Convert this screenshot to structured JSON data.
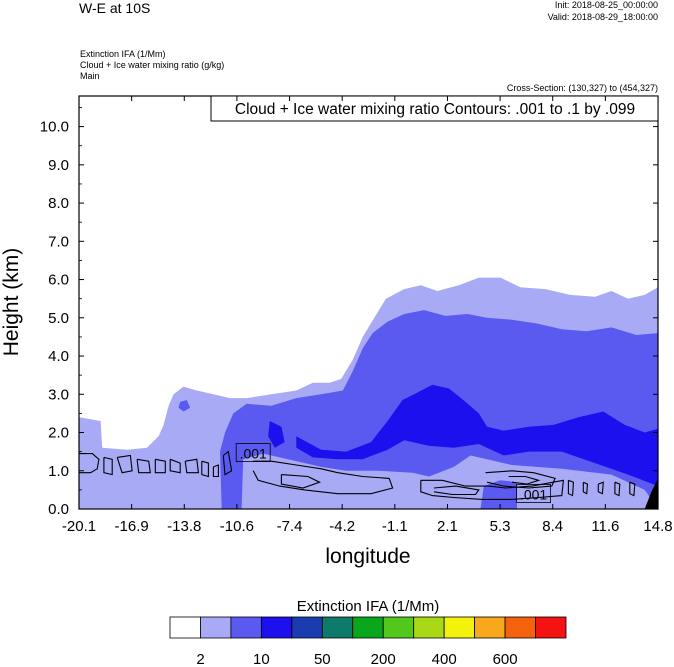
{
  "header": {
    "title": "W-E at 10S",
    "init": "Init: 2018-08-25_00:00:00",
    "valid": "Valid: 2018-08-29_18:00:00",
    "field1": "Extinction IFA   (1/Mm)",
    "field2": "Cloud + Ice water mixing ratio   (g/kg)",
    "field3": "Main",
    "cross_section": "Cross-Section: (130,327) to (454,327)"
  },
  "chart_data": {
    "type": "contour",
    "title": "W-E at 10S",
    "contour_box_label": "Cloud + Ice water mixing ratio Contours: .001 to .1 by .099",
    "xlabel": "longitude",
    "ylabel": "Height (km)",
    "xlim": [
      -20.1,
      14.8
    ],
    "ylim": [
      0.0,
      10.8
    ],
    "xticks": [
      "-20.1",
      "-16.9",
      "-13.8",
      "-10.6",
      "-7.4",
      "-4.2",
      "-1.1",
      "2.1",
      "5.3",
      "8.4",
      "11.6",
      "14.8"
    ],
    "yticks": [
      "0.0",
      "1.0",
      "2.0",
      "3.0",
      "4.0",
      "5.0",
      "6.0",
      "7.0",
      "8.0",
      "9.0",
      "10.0"
    ],
    "contour_labels": [
      {
        "text": ".001",
        "x": -9.6,
        "y": 1.45
      },
      {
        "text": ".001",
        "x": 7.3,
        "y": 0.38
      }
    ],
    "filled_levels": [
      {
        "level": "light",
        "color": "#a8aaf5",
        "polygons": [
          [
            [
              -20.1,
              0.0
            ],
            [
              -20.1,
              2.4
            ],
            [
              -18.8,
              2.3
            ],
            [
              -18.7,
              1.6
            ],
            [
              -17.2,
              1.55
            ],
            [
              -16.0,
              1.6
            ],
            [
              -15.3,
              1.9
            ],
            [
              -15.0,
              2.2
            ],
            [
              -14.7,
              2.7
            ],
            [
              -14.4,
              3.0
            ],
            [
              -13.8,
              3.2
            ],
            [
              -13.0,
              3.1
            ],
            [
              -12.0,
              3.0
            ],
            [
              -11.0,
              2.9
            ],
            [
              -10.0,
              2.9
            ],
            [
              -8.5,
              3.0
            ],
            [
              -7.0,
              3.1
            ],
            [
              -6.0,
              3.3
            ],
            [
              -5.0,
              3.3
            ],
            [
              -4.3,
              3.4
            ],
            [
              -3.6,
              3.9
            ],
            [
              -3.0,
              4.5
            ],
            [
              -2.3,
              5.0
            ],
            [
              -1.6,
              5.5
            ],
            [
              -0.5,
              5.75
            ],
            [
              0.5,
              5.85
            ],
            [
              1.5,
              5.7
            ],
            [
              2.8,
              5.85
            ],
            [
              4.0,
              6.05
            ],
            [
              5.3,
              6.05
            ],
            [
              6.5,
              5.8
            ],
            [
              8.0,
              5.75
            ],
            [
              9.5,
              5.6
            ],
            [
              11.0,
              5.55
            ],
            [
              12.0,
              5.7
            ],
            [
              13.0,
              5.5
            ],
            [
              14.0,
              5.6
            ],
            [
              14.8,
              5.8
            ],
            [
              14.8,
              0.0
            ]
          ]
        ]
      },
      {
        "level": "mid",
        "color": "#5b5af0",
        "polygons": [
          [
            [
              -11.5,
              0.0
            ],
            [
              -11.6,
              1.5
            ],
            [
              -11.3,
              2.0
            ],
            [
              -10.8,
              2.5
            ],
            [
              -10.0,
              2.75
            ],
            [
              -8.5,
              2.7
            ],
            [
              -7.0,
              2.9
            ],
            [
              -5.5,
              3.0
            ],
            [
              -4.2,
              3.1
            ],
            [
              -3.6,
              3.6
            ],
            [
              -3.0,
              4.2
            ],
            [
              -2.4,
              4.6
            ],
            [
              -1.5,
              4.9
            ],
            [
              -0.5,
              5.1
            ],
            [
              0.7,
              5.2
            ],
            [
              2.0,
              5.05
            ],
            [
              3.3,
              5.1
            ],
            [
              4.5,
              5.0
            ],
            [
              6.0,
              4.95
            ],
            [
              7.5,
              4.85
            ],
            [
              9.0,
              4.7
            ],
            [
              10.5,
              4.65
            ],
            [
              12.0,
              4.75
            ],
            [
              13.5,
              4.55
            ],
            [
              14.8,
              4.6
            ],
            [
              14.8,
              0.0
            ],
            [
              14.0,
              0.5
            ],
            [
              12.0,
              0.9
            ],
            [
              9.0,
              1.05
            ],
            [
              6.0,
              1.15
            ],
            [
              4.5,
              1.3
            ],
            [
              3.5,
              1.4
            ],
            [
              2.5,
              1.1
            ],
            [
              1.0,
              0.85
            ],
            [
              0.0,
              0.95
            ],
            [
              -2.0,
              1.0
            ],
            [
              -4.0,
              1.0
            ],
            [
              -5.5,
              1.1
            ],
            [
              -7.5,
              1.3
            ],
            [
              -9.0,
              1.45
            ],
            [
              -10.2,
              1.3
            ],
            [
              -10.3,
              0.0
            ]
          ],
          [
            [
              -14.1,
              2.65
            ],
            [
              -13.8,
              2.55
            ],
            [
              -13.4,
              2.65
            ],
            [
              -13.6,
              2.85
            ],
            [
              -14.0,
              2.8
            ]
          ],
          [
            [
              4.1,
              0.0
            ],
            [
              4.3,
              0.6
            ],
            [
              5.3,
              0.75
            ],
            [
              6.3,
              0.7
            ],
            [
              6.3,
              0.0
            ]
          ]
        ]
      },
      {
        "level": "strong",
        "color": "#1c10ee",
        "polygons": [
          [
            [
              -7.0,
              1.9
            ],
            [
              -5.5,
              1.55
            ],
            [
              -4.0,
              1.5
            ],
            [
              -2.5,
              1.75
            ],
            [
              -1.5,
              2.3
            ],
            [
              -0.6,
              2.85
            ],
            [
              0.1,
              3.0
            ],
            [
              1.2,
              3.25
            ],
            [
              2.2,
              3.15
            ],
            [
              3.2,
              2.8
            ],
            [
              4.0,
              2.5
            ],
            [
              4.5,
              2.15
            ],
            [
              5.5,
              2.05
            ],
            [
              7.0,
              2.15
            ],
            [
              8.5,
              2.2
            ],
            [
              10.0,
              2.4
            ],
            [
              11.5,
              2.55
            ],
            [
              12.8,
              2.2
            ],
            [
              14.0,
              2.0
            ],
            [
              14.8,
              2.1
            ],
            [
              14.8,
              0.6
            ],
            [
              13.0,
              0.9
            ],
            [
              11.0,
              1.2
            ],
            [
              9.0,
              1.5
            ],
            [
              7.0,
              1.5
            ],
            [
              5.5,
              1.4
            ],
            [
              4.0,
              1.7
            ],
            [
              2.5,
              1.6
            ],
            [
              1.0,
              1.65
            ],
            [
              -0.5,
              1.8
            ],
            [
              -1.5,
              1.55
            ],
            [
              -3.0,
              1.3
            ],
            [
              -4.5,
              1.3
            ],
            [
              -6.0,
              1.35
            ],
            [
              -7.0,
              1.6
            ]
          ],
          [
            [
              -8.6,
              2.3
            ],
            [
              -7.9,
              2.15
            ],
            [
              -7.7,
              1.75
            ],
            [
              -8.3,
              1.6
            ],
            [
              -8.7,
              1.9
            ]
          ]
        ]
      },
      {
        "level": "deep",
        "color": "#000000",
        "polygons": [
          [
            [
              14.0,
              0.0
            ],
            [
              14.8,
              0.0
            ],
            [
              14.8,
              0.8
            ],
            [
              14.4,
              0.45
            ]
          ]
        ]
      }
    ],
    "contour_lines": [
      [
        [
          -20.1,
          1.45
        ],
        [
          -19.3,
          1.45
        ],
        [
          -18.9,
          1.3
        ],
        [
          -19.0,
          1.05
        ],
        [
          -19.4,
          0.95
        ],
        [
          -20.1,
          0.95
        ]
      ],
      [
        [
          -18.6,
          1.35
        ],
        [
          -18.1,
          1.3
        ],
        [
          -18.1,
          0.9
        ],
        [
          -18.6,
          0.95
        ],
        [
          -18.6,
          1.35
        ]
      ],
      [
        [
          -17.8,
          1.35
        ],
        [
          -17.0,
          1.4
        ],
        [
          -16.9,
          1.0
        ],
        [
          -17.5,
          0.95
        ],
        [
          -17.8,
          1.35
        ]
      ],
      [
        [
          -16.6,
          1.3
        ],
        [
          -15.9,
          1.25
        ],
        [
          -15.8,
          0.95
        ],
        [
          -16.5,
          0.95
        ],
        [
          -16.6,
          1.3
        ]
      ],
      [
        [
          -15.5,
          1.3
        ],
        [
          -14.9,
          1.25
        ],
        [
          -14.9,
          0.95
        ],
        [
          -15.5,
          0.95
        ],
        [
          -15.5,
          1.3
        ]
      ],
      [
        [
          -14.6,
          1.3
        ],
        [
          -14.0,
          1.2
        ],
        [
          -14.0,
          0.95
        ],
        [
          -14.6,
          1.0
        ],
        [
          -14.6,
          1.3
        ]
      ],
      [
        [
          -13.7,
          1.25
        ],
        [
          -13.0,
          1.3
        ],
        [
          -12.9,
          0.95
        ],
        [
          -13.6,
          0.95
        ],
        [
          -13.7,
          1.25
        ]
      ],
      [
        [
          -12.7,
          1.25
        ],
        [
          -12.3,
          1.2
        ],
        [
          -12.3,
          0.85
        ],
        [
          -12.7,
          0.9
        ],
        [
          -12.7,
          1.25
        ]
      ],
      [
        [
          -12.0,
          1.1
        ],
        [
          -11.7,
          1.15
        ],
        [
          -11.7,
          0.85
        ],
        [
          -12.0,
          0.85
        ],
        [
          -12.0,
          1.1
        ]
      ],
      [
        [
          -11.4,
          1.4
        ],
        [
          -11.1,
          1.5
        ],
        [
          -10.9,
          1.0
        ],
        [
          -11.3,
          0.9
        ],
        [
          -11.4,
          1.4
        ]
      ],
      [
        [
          -9.6,
          1.25
        ],
        [
          -8.5,
          1.25
        ],
        [
          -7.0,
          1.15
        ],
        [
          -5.5,
          1.05
        ],
        [
          -4.5,
          0.95
        ],
        [
          -3.0,
          0.85
        ],
        [
          -1.4,
          0.8
        ],
        [
          -1.2,
          0.55
        ],
        [
          -2.5,
          0.4
        ],
        [
          -4.5,
          0.4
        ],
        [
          -6.5,
          0.5
        ],
        [
          -8.0,
          0.6
        ],
        [
          -9.3,
          0.75
        ],
        [
          -9.6,
          1.0
        ]
      ],
      [
        [
          -7.9,
          0.9
        ],
        [
          -6.3,
          0.85
        ],
        [
          -5.6,
          0.7
        ],
        [
          -6.6,
          0.55
        ],
        [
          -7.9,
          0.65
        ],
        [
          -7.9,
          0.9
        ]
      ],
      [
        [
          0.5,
          0.75
        ],
        [
          1.8,
          0.75
        ],
        [
          3.2,
          0.6
        ],
        [
          4.6,
          0.6
        ],
        [
          5.6,
          0.55
        ],
        [
          7.2,
          0.6
        ],
        [
          9.1,
          0.75
        ],
        [
          9.0,
          0.35
        ],
        [
          7.6,
          0.3
        ],
        [
          6.0,
          0.25
        ],
        [
          4.2,
          0.25
        ],
        [
          2.5,
          0.3
        ],
        [
          1.2,
          0.35
        ],
        [
          0.5,
          0.45
        ],
        [
          0.5,
          0.75
        ]
      ],
      [
        [
          1.3,
          0.55
        ],
        [
          2.6,
          0.6
        ],
        [
          4.0,
          0.5
        ],
        [
          3.8,
          0.38
        ],
        [
          2.4,
          0.38
        ],
        [
          1.3,
          0.45
        ]
      ],
      [
        [
          4.4,
          0.95
        ],
        [
          6.0,
          1.0
        ],
        [
          7.3,
          0.95
        ],
        [
          8.6,
          0.8
        ],
        [
          8.4,
          0.6
        ],
        [
          7.0,
          0.55
        ],
        [
          5.5,
          0.6
        ],
        [
          4.5,
          0.7
        ]
      ],
      [
        [
          5.8,
          0.85
        ],
        [
          6.8,
          0.85
        ],
        [
          7.6,
          0.75
        ],
        [
          6.9,
          0.65
        ],
        [
          6.0,
          0.7
        ]
      ],
      [
        [
          9.4,
          0.75
        ],
        [
          9.7,
          0.7
        ],
        [
          9.65,
          0.35
        ],
        [
          9.4,
          0.4
        ],
        [
          9.4,
          0.75
        ]
      ],
      [
        [
          10.3,
          0.7
        ],
        [
          10.55,
          0.65
        ],
        [
          10.5,
          0.4
        ],
        [
          10.3,
          0.45
        ],
        [
          10.3,
          0.7
        ]
      ],
      [
        [
          11.2,
          0.65
        ],
        [
          11.5,
          0.7
        ],
        [
          11.45,
          0.4
        ],
        [
          11.2,
          0.45
        ],
        [
          11.2,
          0.65
        ]
      ],
      [
        [
          12.2,
          0.7
        ],
        [
          12.5,
          0.65
        ],
        [
          12.45,
          0.35
        ],
        [
          12.2,
          0.4
        ],
        [
          12.2,
          0.7
        ]
      ],
      [
        [
          13.1,
          0.7
        ],
        [
          13.4,
          0.65
        ],
        [
          13.35,
          0.35
        ],
        [
          13.1,
          0.4
        ],
        [
          13.1,
          0.7
        ]
      ]
    ]
  },
  "colorbar": {
    "title": "Extinction IFA  (1/Mm)",
    "colors": [
      "#ffffff",
      "#a8aaf5",
      "#5b5af0",
      "#1c10ee",
      "#1a3cb0",
      "#0e7a6a",
      "#0aa61c",
      "#52c81c",
      "#a8d816",
      "#f2f20c",
      "#f7a81c",
      "#f5620e",
      "#f51212"
    ],
    "labels": [
      "2",
      "10",
      "50",
      "200",
      "400",
      "600"
    ]
  }
}
